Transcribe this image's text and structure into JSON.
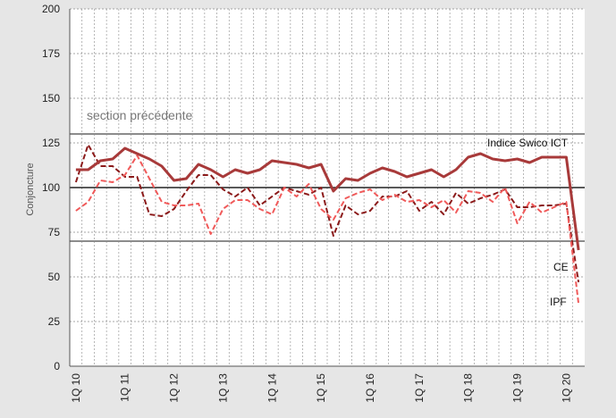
{
  "chart_data": {
    "type": "line",
    "ylabel": "Conjoncture",
    "ylim": [
      0,
      200
    ],
    "yticks": [
      0,
      25,
      50,
      75,
      100,
      125,
      150,
      175,
      200
    ],
    "categories_count": 42,
    "xtick_labels": [
      {
        "index": 0,
        "label": "1Q 10"
      },
      {
        "index": 4,
        "label": "1Q 11"
      },
      {
        "index": 8,
        "label": "1Q 12"
      },
      {
        "index": 12,
        "label": "1Q 13"
      },
      {
        "index": 16,
        "label": "1Q 14"
      },
      {
        "index": 20,
        "label": "1Q 15"
      },
      {
        "index": 24,
        "label": "1Q 16"
      },
      {
        "index": 28,
        "label": "1Q 17"
      },
      {
        "index": 32,
        "label": "1Q 18"
      },
      {
        "index": 36,
        "label": "1Q 19"
      },
      {
        "index": 40,
        "label": "1Q 20"
      }
    ],
    "reference_lines": [
      130,
      100,
      70
    ],
    "section_label": "section précédente",
    "grid": true,
    "series": [
      {
        "name": "Indice Swico ICT",
        "color": "#a83a3a",
        "style": "solid",
        "values": [
          110,
          110,
          115,
          116,
          122,
          119,
          116,
          112,
          104,
          105,
          113,
          110,
          106,
          110,
          108,
          110,
          115,
          114,
          113,
          111,
          113,
          98,
          105,
          104,
          108,
          111,
          109,
          106,
          108,
          110,
          106,
          110,
          117,
          119,
          116,
          115,
          116,
          114,
          117,
          117,
          117,
          65
        ]
      },
      {
        "name": "CE",
        "color": "#8b1a1a",
        "style": "dashed",
        "values": [
          103,
          124,
          112,
          112,
          106,
          106,
          85,
          84,
          88,
          98,
          107,
          107,
          99,
          95,
          100,
          90,
          95,
          100,
          98,
          96,
          100,
          73,
          90,
          85,
          87,
          95,
          95,
          98,
          87,
          92,
          85,
          97,
          91,
          94,
          96,
          99,
          89,
          89,
          90,
          90,
          91,
          47
        ]
      },
      {
        "name": "IPF",
        "color": "#f05a5a",
        "style": "dashed",
        "values": [
          87,
          92,
          104,
          103,
          107,
          118,
          105,
          92,
          90,
          90,
          91,
          74,
          88,
          93,
          93,
          88,
          85,
          100,
          95,
          102,
          88,
          82,
          94,
          97,
          99,
          93,
          96,
          92,
          93,
          89,
          93,
          86,
          98,
          97,
          92,
          100,
          80,
          92,
          86,
          89,
          92,
          35
        ]
      }
    ],
    "labels": {
      "ict": "Indice Swico ICT",
      "ce": "CE",
      "ipf": "IPF"
    }
  }
}
